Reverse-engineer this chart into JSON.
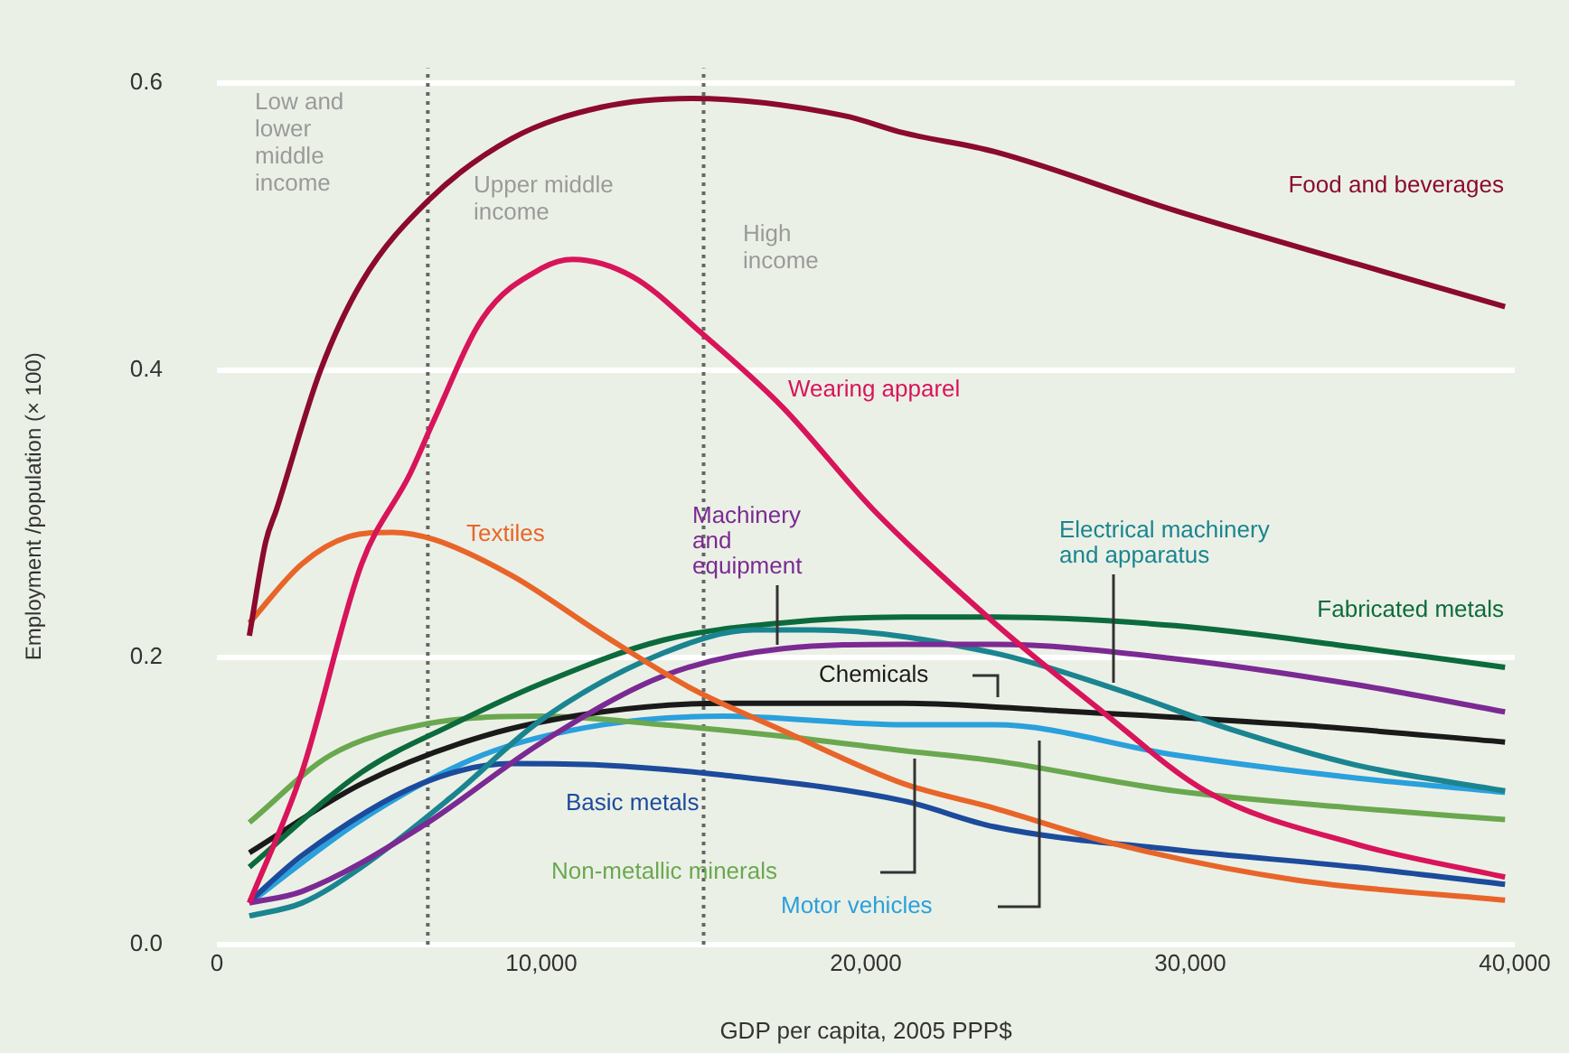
{
  "chart_data": {
    "type": "line",
    "xlabel": "GDP per capita, 2005 PPP$",
    "ylabel": "Employment /population (× 100)",
    "xlim": [
      0,
      40000
    ],
    "ylim": [
      0,
      0.61
    ],
    "xticks": [
      0,
      {
        "value": 10000,
        "label": "10,000"
      },
      {
        "value": 20000,
        "label": "20,000"
      },
      {
        "value": 30000,
        "label": "30,000"
      },
      {
        "value": 40000,
        "label": "40,000"
      }
    ],
    "yticks": [
      {
        "value": 0,
        "label": "0.0"
      },
      0.2,
      0.4,
      0.6
    ],
    "grid": "y",
    "legend": false,
    "marker": "none",
    "line_style": "solid",
    "ref_lines": [
      {
        "axis": "x",
        "value": 6500,
        "color": "#666666",
        "line_style": "dotted"
      },
      {
        "axis": "x",
        "value": 15000,
        "color": "#666666",
        "line_style": "dotted"
      }
    ],
    "annotations": [
      "Low and lower middle income",
      "Upper middle income",
      "High income"
    ],
    "series": [
      {
        "name": "Food and beverages",
        "color": "#8b0a2e",
        "x": [
          1000,
          1500,
          1840,
          3180,
          4460,
          6520,
          9080,
          11870,
          14650,
          19330,
          21170,
          23960,
          29530,
          35100,
          39700
        ],
        "values": [
          0.215,
          0.28,
          0.303,
          0.399,
          0.461,
          0.518,
          0.561,
          0.583,
          0.589,
          0.577,
          0.565,
          0.552,
          0.511,
          0.474,
          0.444
        ]
      },
      {
        "name": "Wearing apparel",
        "color": "#d8145a",
        "x": [
          1000,
          2620,
          4460,
          5960,
          6690,
          8190,
          10030,
          10970,
          12810,
          14870,
          17440,
          20220,
          23960,
          27300,
          30470,
          35100,
          39700
        ],
        "values": [
          0.029,
          0.12,
          0.265,
          0.328,
          0.365,
          0.436,
          0.471,
          0.477,
          0.465,
          0.427,
          0.374,
          0.303,
          0.224,
          0.162,
          0.107,
          0.07,
          0.047
        ]
      },
      {
        "name": "Textiles",
        "color": "#e8652a",
        "x": [
          1000,
          2620,
          4070,
          5400,
          6690,
          9080,
          11870,
          14650,
          17440,
          21170,
          23960,
          27690,
          33260,
          39700
        ],
        "values": [
          0.224,
          0.265,
          0.284,
          0.287,
          0.282,
          0.257,
          0.216,
          0.178,
          0.149,
          0.112,
          0.095,
          0.07,
          0.045,
          0.031
        ]
      },
      {
        "name": "Machinery and equipment",
        "color": "#7b2a93",
        "x": [
          1000,
          2620,
          6300,
          10030,
          13760,
          17440,
          21170,
          23960,
          29530,
          35100,
          39700
        ],
        "values": [
          0.029,
          0.037,
          0.082,
          0.141,
          0.187,
          0.206,
          0.209,
          0.209,
          0.199,
          0.181,
          0.162
        ]
      },
      {
        "name": "Electrical machinery and apparatus",
        "color": "#1a8590",
        "x": [
          1000,
          2620,
          4460,
          7240,
          10030,
          13760,
          16550,
          18380,
          23960,
          27690,
          31360,
          35100,
          39700
        ],
        "values": [
          0.02,
          0.029,
          0.054,
          0.103,
          0.157,
          0.203,
          0.219,
          0.219,
          0.203,
          0.178,
          0.149,
          0.125,
          0.107
        ]
      },
      {
        "name": "Fabricated metals",
        "color": "#0c6b3c",
        "x": [
          1000,
          4460,
          7240,
          10030,
          13760,
          17440,
          21170,
          23960,
          29530,
          35100,
          39700
        ],
        "values": [
          0.054,
          0.12,
          0.153,
          0.182,
          0.212,
          0.224,
          0.228,
          0.228,
          0.222,
          0.207,
          0.193
        ]
      },
      {
        "name": "Chemicals",
        "color": "#1a1a1a",
        "x": [
          1000,
          4460,
          8190,
          11870,
          15600,
          21170,
          25790,
          33260,
          39700
        ],
        "values": [
          0.064,
          0.112,
          0.145,
          0.162,
          0.168,
          0.168,
          0.163,
          0.153,
          0.141
        ]
      },
      {
        "name": "Basic metals",
        "color": "#1c4b9c",
        "x": [
          1000,
          2620,
          6300,
          9080,
          11870,
          15600,
          21170,
          23960,
          29530,
          35100,
          39700
        ],
        "values": [
          0.03,
          0.062,
          0.112,
          0.126,
          0.125,
          0.118,
          0.1,
          0.082,
          0.066,
          0.054,
          0.042
        ]
      },
      {
        "name": "Non-metallic minerals",
        "color": "#6aa84f",
        "x": [
          1000,
          3510,
          6300,
          10030,
          13760,
          17440,
          21170,
          23960,
          29530,
          35100,
          39700
        ],
        "values": [
          0.085,
          0.132,
          0.153,
          0.159,
          0.153,
          0.145,
          0.135,
          0.128,
          0.107,
          0.095,
          0.087
        ]
      },
      {
        "name": "Motor vehicles",
        "color": "#2aa0dc",
        "x": [
          1000,
          4460,
          8190,
          11870,
          15600,
          21170,
          23960,
          29530,
          35100,
          39700
        ],
        "values": [
          0.029,
          0.087,
          0.132,
          0.153,
          0.159,
          0.153,
          0.153,
          0.132,
          0.116,
          0.106
        ]
      }
    ]
  }
}
